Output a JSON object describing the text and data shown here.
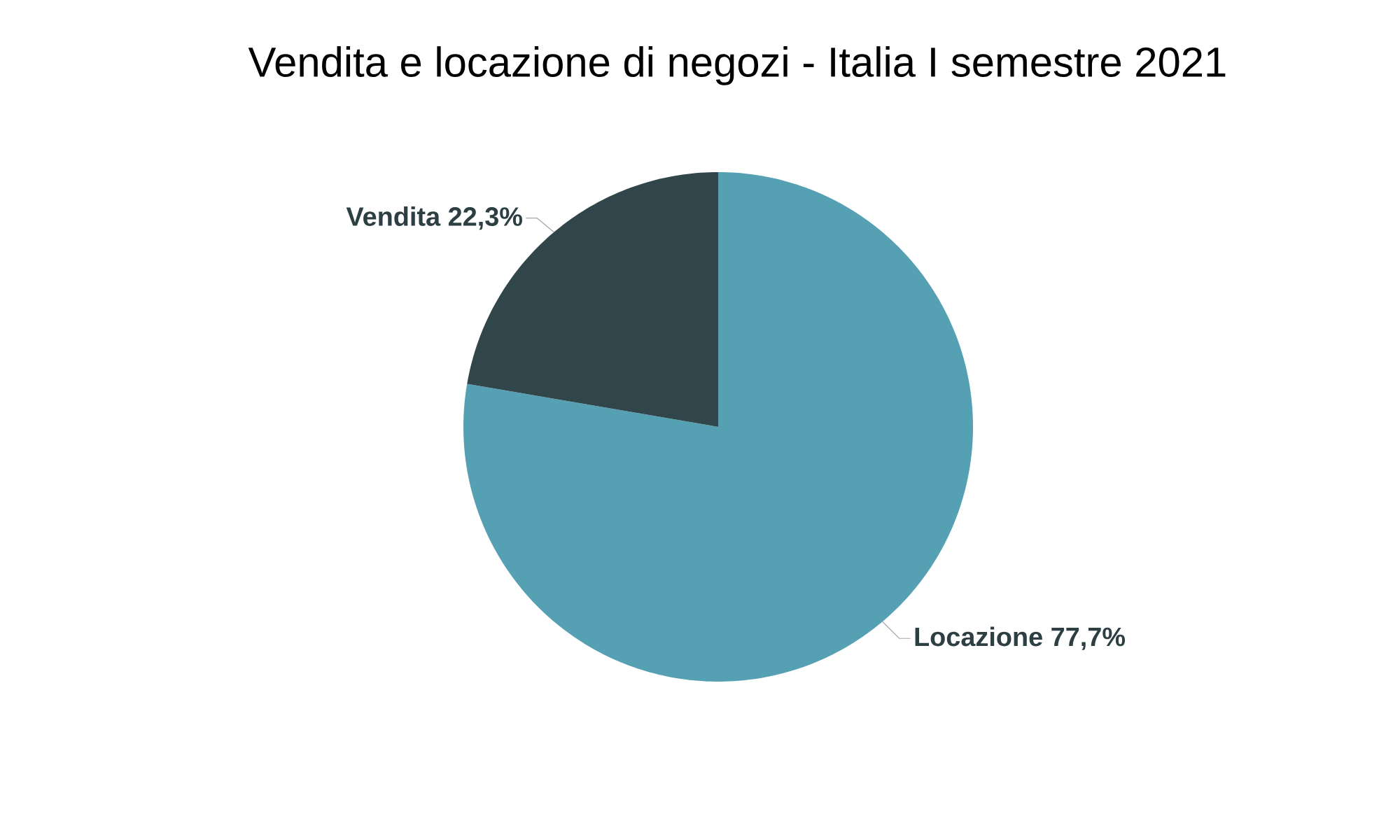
{
  "chart_data": {
    "type": "pie",
    "title": "Vendita e locazione di negozi - Italia I semestre 2021",
    "categories": [
      "Locazione",
      "Vendita"
    ],
    "values": [
      77.7,
      22.3
    ],
    "colors": [
      "#56a0b3",
      "#31464b"
    ],
    "value_labels": [
      "77,7%",
      "22,3%"
    ]
  }
}
